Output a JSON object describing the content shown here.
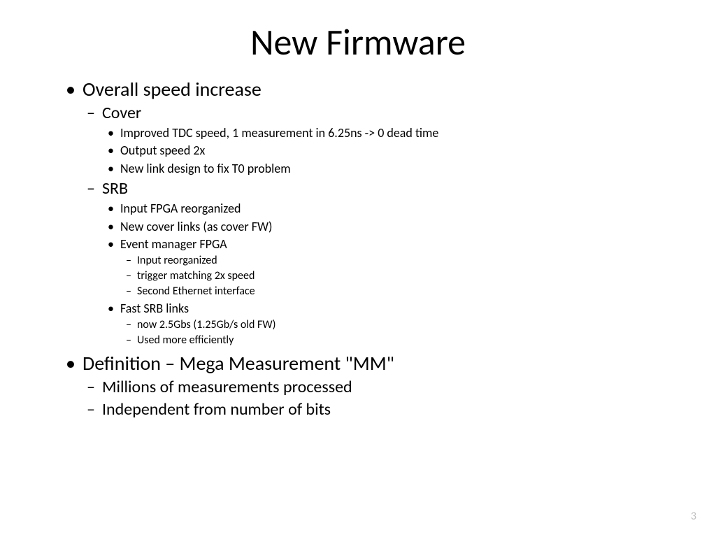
{
  "slide": {
    "title": "New Firmware",
    "page_number": "3",
    "colors": {
      "background": "#ffffff",
      "text": "#000000",
      "page_number": "#bfbfbf"
    },
    "typography": {
      "title_fontsize": 52,
      "lvl1_fontsize": 28,
      "lvl2_fontsize": 24,
      "lvl3_fontsize": 18,
      "lvl4_fontsize": 16,
      "font_family": "Calibri"
    },
    "bullets": [
      {
        "text": "Overall speed increase",
        "children": [
          {
            "text": "Cover",
            "children": [
              {
                "text": "Improved TDC speed, 1 measurement in 6.25ns -> 0 dead time"
              },
              {
                "text": "Output speed 2x"
              },
              {
                "text": "New link design to fix T0 problem"
              }
            ]
          },
          {
            "text": "SRB",
            "children": [
              {
                "text": "Input FPGA reorganized"
              },
              {
                "text": "New cover links (as cover FW)"
              },
              {
                "text": "Event manager FPGA",
                "children": [
                  {
                    "text": "Input reorganized"
                  },
                  {
                    "text": "trigger matching 2x speed"
                  },
                  {
                    "text": "Second Ethernet interface"
                  }
                ]
              },
              {
                "text": "Fast SRB links",
                "children": [
                  {
                    "text": "now 2.5Gbs (1.25Gb/s old FW)"
                  },
                  {
                    "text": "Used more efficiently"
                  }
                ]
              }
            ]
          }
        ]
      },
      {
        "text": "Definition – Mega Measurement \"MM\"",
        "children": [
          {
            "text": "Millions of measurements processed"
          },
          {
            "text": "Independent from number of bits"
          }
        ]
      }
    ]
  }
}
